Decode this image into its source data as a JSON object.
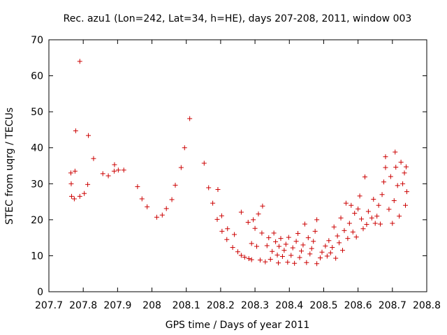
{
  "chart_data": {
    "type": "scatter",
    "title": "Rec. azu1 (Lon=242, Lat=34, h=HE), days 207-208, 2011, window 003",
    "xlabel": "GPS time / Days of year 2011",
    "ylabel": "STEC from uqrg / TECUs",
    "xlim": [
      207.7,
      208.8
    ],
    "ylim": [
      0,
      70
    ],
    "xticks": [
      207.7,
      207.8,
      207.9,
      208.0,
      208.1,
      208.2,
      208.3,
      208.4,
      208.5,
      208.6,
      208.7,
      208.8
    ],
    "xtick_labels": [
      "207.7",
      "207.8",
      "207.9",
      "208",
      "208.1",
      "208.2",
      "208.3",
      "208.4",
      "208.5",
      "208.6",
      "208.7",
      "208.8"
    ],
    "yticks": [
      0,
      10,
      20,
      30,
      40,
      50,
      60,
      70
    ],
    "ytick_labels": [
      "0",
      "10",
      "20",
      "30",
      "40",
      "50",
      "60",
      "70"
    ],
    "marker_color": "#cc0000",
    "marker": "+",
    "grid": false,
    "series": [
      {
        "name": "STEC",
        "points": [
          [
            207.764,
            33.0
          ],
          [
            207.765,
            30.0
          ],
          [
            207.766,
            26.5
          ],
          [
            207.774,
            25.8
          ],
          [
            207.776,
            33.5
          ],
          [
            207.778,
            44.7
          ],
          [
            207.79,
            26.5
          ],
          [
            207.79,
            64.0
          ],
          [
            207.803,
            27.3
          ],
          [
            207.813,
            29.8
          ],
          [
            207.815,
            43.4
          ],
          [
            207.83,
            37.0
          ],
          [
            207.857,
            32.8
          ],
          [
            207.873,
            32.2
          ],
          [
            207.89,
            33.5
          ],
          [
            207.891,
            35.3
          ],
          [
            207.902,
            33.8
          ],
          [
            207.918,
            33.8
          ],
          [
            207.958,
            29.2
          ],
          [
            207.971,
            25.8
          ],
          [
            207.986,
            23.6
          ],
          [
            208.014,
            20.7
          ],
          [
            208.03,
            21.3
          ],
          [
            208.042,
            23.1
          ],
          [
            208.058,
            25.6
          ],
          [
            208.068,
            29.6
          ],
          [
            208.085,
            34.5
          ],
          [
            208.095,
            40.0
          ],
          [
            208.11,
            48.1
          ],
          [
            208.152,
            35.7
          ],
          [
            208.165,
            28.9
          ],
          [
            208.177,
            24.6
          ],
          [
            208.19,
            20.1
          ],
          [
            208.192,
            28.4
          ],
          [
            208.203,
            21.1
          ],
          [
            208.204,
            16.8
          ],
          [
            208.218,
            14.5
          ],
          [
            208.22,
            17.5
          ],
          [
            208.235,
            12.3
          ],
          [
            208.24,
            15.9
          ],
          [
            208.25,
            11.1
          ],
          [
            208.26,
            10.1
          ],
          [
            208.26,
            22.1
          ],
          [
            208.27,
            9.6
          ],
          [
            208.28,
            19.3
          ],
          [
            208.282,
            9.2
          ],
          [
            208.29,
            8.9
          ],
          [
            208.295,
            20.0
          ],
          [
            208.29,
            13.4
          ],
          [
            208.3,
            17.6
          ],
          [
            208.305,
            12.6
          ],
          [
            208.31,
            21.6
          ],
          [
            208.315,
            8.8
          ],
          [
            208.32,
            16.3
          ],
          [
            208.322,
            23.8
          ],
          [
            208.33,
            8.3
          ],
          [
            208.335,
            12.8
          ],
          [
            208.34,
            15.0
          ],
          [
            208.345,
            9.0
          ],
          [
            208.35,
            11.2
          ],
          [
            208.355,
            16.3
          ],
          [
            208.36,
            13.9
          ],
          [
            208.365,
            10.2
          ],
          [
            208.368,
            8.0
          ],
          [
            208.37,
            12.6
          ],
          [
            208.375,
            14.8
          ],
          [
            208.38,
            9.8
          ],
          [
            208.385,
            11.5
          ],
          [
            208.39,
            13.2
          ],
          [
            208.395,
            8.2
          ],
          [
            208.398,
            15.1
          ],
          [
            208.405,
            10.1
          ],
          [
            208.41,
            12.2
          ],
          [
            208.415,
            7.9
          ],
          [
            208.42,
            14.0
          ],
          [
            208.425,
            16.2
          ],
          [
            208.43,
            9.5
          ],
          [
            208.435,
            11.3
          ],
          [
            208.44,
            13.0
          ],
          [
            208.445,
            18.8
          ],
          [
            208.45,
            8.1
          ],
          [
            208.455,
            15.0
          ],
          [
            208.46,
            10.5
          ],
          [
            208.465,
            12.0
          ],
          [
            208.47,
            14.0
          ],
          [
            208.475,
            16.8
          ],
          [
            208.48,
            7.8
          ],
          [
            208.49,
            9.4
          ],
          [
            208.495,
            11.0
          ],
          [
            208.48,
            20.0
          ],
          [
            208.505,
            12.7
          ],
          [
            208.51,
            9.9
          ],
          [
            208.515,
            14.2
          ],
          [
            208.52,
            10.8
          ],
          [
            208.525,
            12.3
          ],
          [
            208.53,
            18.0
          ],
          [
            208.535,
            9.3
          ],
          [
            208.54,
            15.5
          ],
          [
            208.545,
            13.6
          ],
          [
            208.55,
            20.5
          ],
          [
            208.555,
            11.5
          ],
          [
            208.56,
            17.0
          ],
          [
            208.565,
            24.6
          ],
          [
            208.57,
            14.8
          ],
          [
            208.575,
            19.0
          ],
          [
            208.58,
            24.0
          ],
          [
            208.585,
            16.6
          ],
          [
            208.59,
            21.8
          ],
          [
            208.595,
            15.2
          ],
          [
            208.6,
            23.0
          ],
          [
            208.605,
            26.6
          ],
          [
            208.61,
            20.2
          ],
          [
            208.615,
            17.5
          ],
          [
            208.62,
            31.9
          ],
          [
            208.625,
            18.7
          ],
          [
            208.63,
            22.3
          ],
          [
            208.64,
            20.5
          ],
          [
            208.645,
            25.7
          ],
          [
            208.65,
            19.0
          ],
          [
            208.655,
            21.0
          ],
          [
            208.66,
            24.0
          ],
          [
            208.665,
            18.8
          ],
          [
            208.67,
            27.0
          ],
          [
            208.675,
            30.5
          ],
          [
            208.68,
            34.5
          ],
          [
            208.68,
            37.5
          ],
          [
            208.69,
            22.9
          ],
          [
            208.695,
            32.0
          ],
          [
            208.7,
            19.0
          ],
          [
            208.705,
            25.3
          ],
          [
            208.708,
            38.8
          ],
          [
            208.71,
            34.6
          ],
          [
            208.715,
            29.5
          ],
          [
            208.72,
            21.0
          ],
          [
            208.725,
            36.0
          ],
          [
            208.73,
            30.0
          ],
          [
            208.735,
            33.0
          ],
          [
            208.738,
            24.0
          ],
          [
            208.74,
            34.7
          ],
          [
            208.742,
            27.8
          ]
        ]
      }
    ]
  }
}
